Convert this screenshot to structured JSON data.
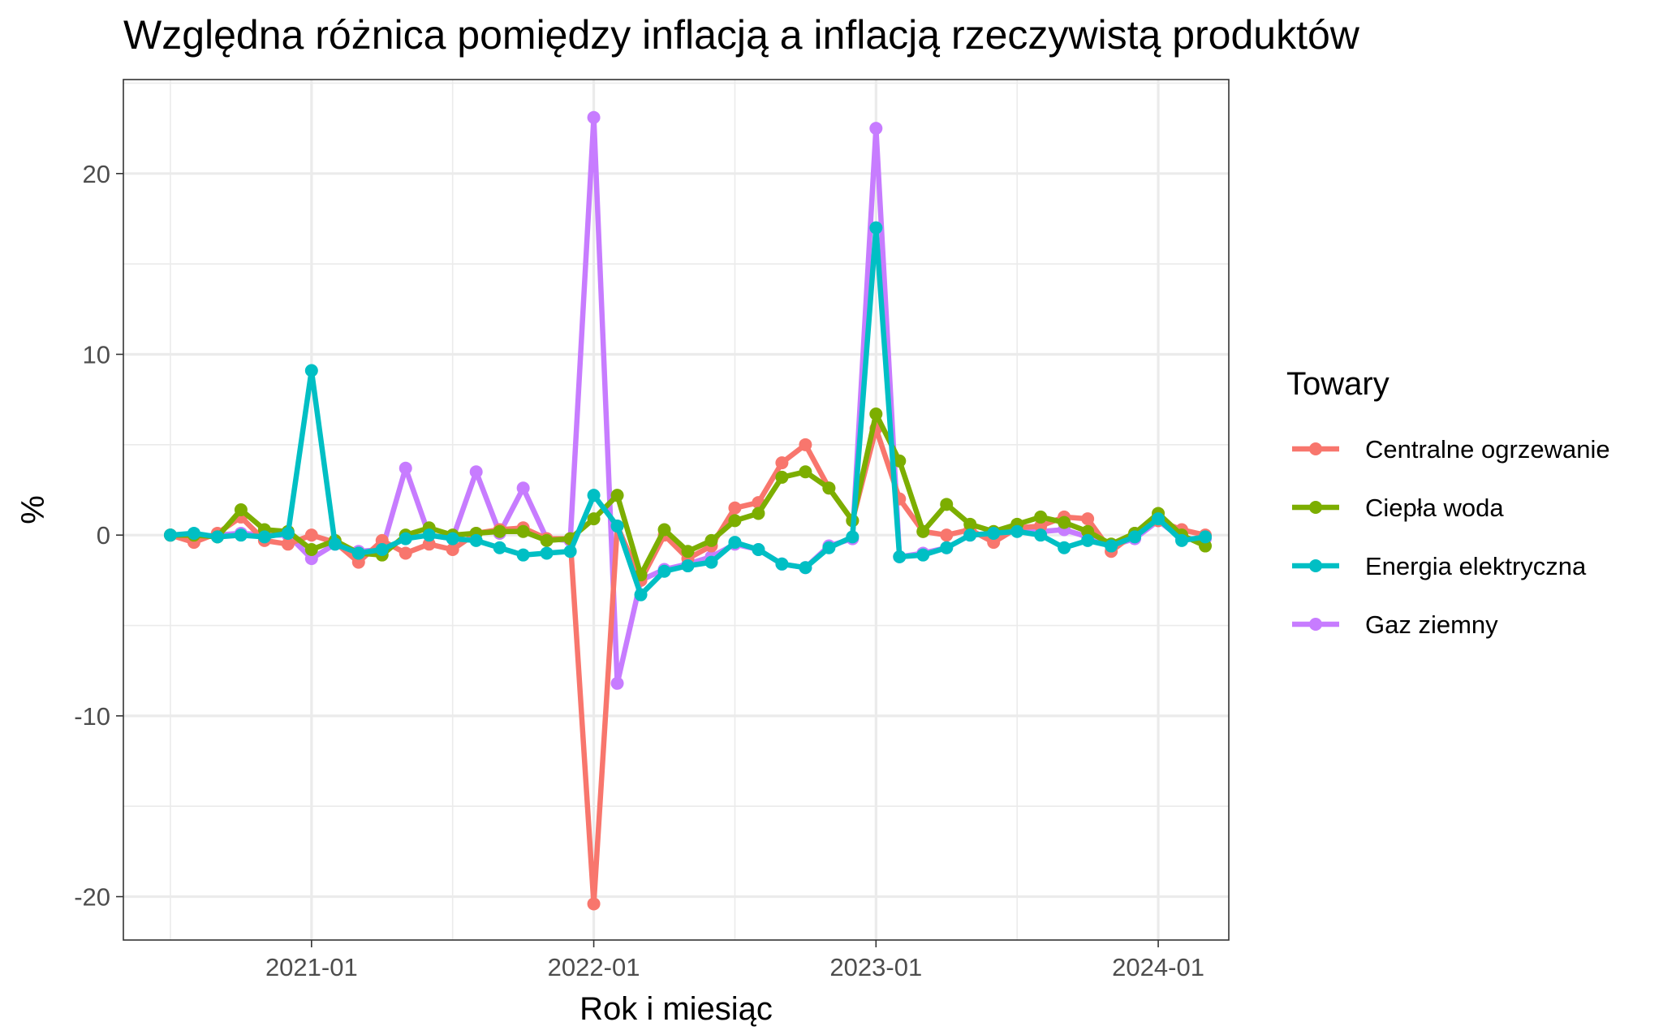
{
  "chart_data": {
    "type": "line",
    "title": "Względna różnica pomiędzy inflacją a inflacją rzeczywistą produktów",
    "xlabel": "Rok i miesiąc",
    "ylabel": "%",
    "x_ticks": [
      "2021-01",
      "2022-01",
      "2023-01",
      "2024-01"
    ],
    "y_ticks": [
      -20,
      -10,
      0,
      10,
      20
    ],
    "xlim": [
      "2020-05",
      "2024-04"
    ],
    "ylim": [
      -22.4,
      25.2
    ],
    "grid": true,
    "legend": {
      "title": "Towary",
      "position": "right"
    },
    "x": [
      "2020-07",
      "2020-08",
      "2020-09",
      "2020-10",
      "2020-11",
      "2020-12",
      "2021-01",
      "2021-02",
      "2021-03",
      "2021-04",
      "2021-05",
      "2021-06",
      "2021-07",
      "2021-08",
      "2021-09",
      "2021-10",
      "2021-11",
      "2021-12",
      "2022-01",
      "2022-02",
      "2022-03",
      "2022-04",
      "2022-05",
      "2022-06",
      "2022-07",
      "2022-08",
      "2022-09",
      "2022-10",
      "2022-11",
      "2022-12",
      "2023-01",
      "2023-02",
      "2023-03",
      "2023-04",
      "2023-05",
      "2023-06",
      "2023-07",
      "2023-08",
      "2023-09",
      "2023-10",
      "2023-11",
      "2023-12",
      "2024-01",
      "2024-02",
      "2024-03"
    ],
    "series": [
      {
        "name": "Centralne ogrzewanie",
        "color": "#F8766D",
        "values": [
          0,
          -0.4,
          0.1,
          1.0,
          -0.3,
          -0.5,
          0,
          -0.4,
          -1.5,
          -0.3,
          -1.0,
          -0.5,
          -0.8,
          0.1,
          0.3,
          0.4,
          -0.2,
          -0.2,
          -20.4,
          0.5,
          -2.5,
          0,
          -1.3,
          -0.6,
          1.5,
          1.8,
          4.0,
          5.0,
          2.6,
          0.8,
          5.9,
          2.0,
          0.2,
          0,
          0.3,
          -0.4,
          0.4,
          0.5,
          1.0,
          0.9,
          -0.9,
          0.1,
          0.8,
          0.3,
          0
        ]
      },
      {
        "name": "Ciepła woda",
        "color": "#7CAE00",
        "values": [
          0,
          0,
          -0.1,
          1.4,
          0.3,
          0.2,
          -0.8,
          -0.3,
          -1.0,
          -1.1,
          0,
          0.4,
          0,
          0.1,
          0.2,
          0.2,
          -0.3,
          -0.2,
          0.9,
          2.2,
          -2.2,
          0.3,
          -0.9,
          -0.3,
          0.8,
          1.2,
          3.2,
          3.5,
          2.6,
          0.8,
          6.7,
          4.1,
          0.2,
          1.7,
          0.6,
          0.2,
          0.6,
          1.0,
          0.7,
          0.2,
          -0.5,
          0.1,
          1.2,
          0,
          -0.6
        ]
      },
      {
        "name": "Energia elektryczna",
        "color": "#00BFC4",
        "values": [
          0,
          0.1,
          -0.1,
          0,
          -0.1,
          0.1,
          9.1,
          -0.5,
          -1.0,
          -0.8,
          -0.2,
          0,
          -0.2,
          -0.3,
          -0.7,
          -1.1,
          -1.0,
          -0.9,
          2.2,
          0.5,
          -3.3,
          -2.0,
          -1.7,
          -1.5,
          -0.4,
          -0.8,
          -1.6,
          -1.8,
          -0.7,
          -0.1,
          17.0,
          -1.2,
          -1.1,
          -0.7,
          0,
          0.1,
          0.2,
          0,
          -0.7,
          -0.3,
          -0.6,
          -0.1,
          0.9,
          -0.3,
          -0.1
        ]
      },
      {
        "name": "Gaz ziemny",
        "color": "#C77CFF",
        "values": [
          0,
          -0.1,
          0,
          0.1,
          0,
          0,
          -1.3,
          -0.5,
          -0.9,
          -0.8,
          3.7,
          0,
          -0.2,
          3.5,
          0.1,
          2.6,
          -0.2,
          -0.3,
          23.1,
          -8.2,
          -2.5,
          -1.9,
          -1.6,
          -1.2,
          -0.5,
          -0.8,
          -1.6,
          -1.8,
          -0.6,
          -0.2,
          22.5,
          -1.2,
          -1.0,
          -0.7,
          0,
          0.1,
          0.4,
          0.2,
          0.3,
          -0.1,
          -0.6,
          -0.2,
          0.8,
          -0.2,
          -0.2
        ]
      }
    ]
  }
}
